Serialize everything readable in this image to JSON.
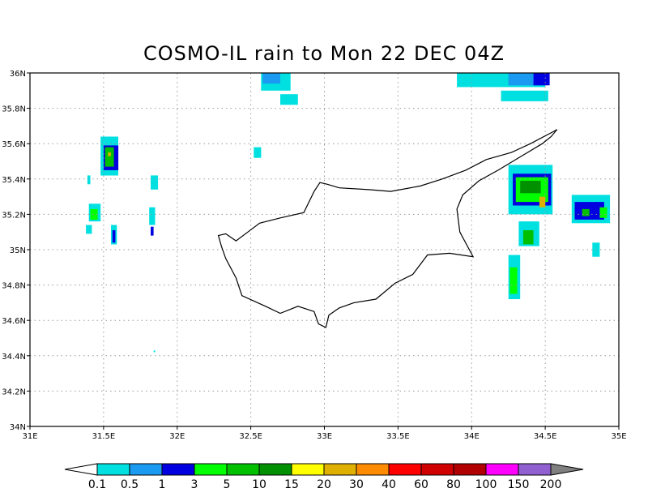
{
  "title": "COSMO-IL rain to Mon 22 DEC 04Z",
  "map": {
    "lon_range": [
      31,
      35
    ],
    "lat_range": [
      34,
      36
    ],
    "grid": "dotted",
    "x_ticks": [
      {
        "value": 31.0,
        "label": "31E"
      },
      {
        "value": 31.5,
        "label": "31.5E"
      },
      {
        "value": 32.0,
        "label": "32E"
      },
      {
        "value": 32.5,
        "label": "32.5E"
      },
      {
        "value": 33.0,
        "label": "33E"
      },
      {
        "value": 33.5,
        "label": "33.5E"
      },
      {
        "value": 34.0,
        "label": "34E"
      },
      {
        "value": 34.5,
        "label": "34.5E"
      },
      {
        "value": 35.0,
        "label": "35E"
      }
    ],
    "y_ticks": [
      {
        "value": 34.0,
        "label": "34N"
      },
      {
        "value": 34.2,
        "label": "34.2N"
      },
      {
        "value": 34.4,
        "label": "34.4N"
      },
      {
        "value": 34.6,
        "label": "34.6N"
      },
      {
        "value": 34.8,
        "label": "34.8N"
      },
      {
        "value": 35.0,
        "label": "35N"
      },
      {
        "value": 35.2,
        "label": "35.2N"
      },
      {
        "value": 35.4,
        "label": "35.4N"
      },
      {
        "value": 35.6,
        "label": "35.6N"
      },
      {
        "value": 35.8,
        "label": "35.8N"
      },
      {
        "value": 36.0,
        "label": "36N"
      }
    ],
    "coastline": [
      [
        32.28,
        35.08
      ],
      [
        32.33,
        35.09
      ],
      [
        32.4,
        35.05
      ],
      [
        32.48,
        35.1
      ],
      [
        32.56,
        35.15
      ],
      [
        32.7,
        35.18
      ],
      [
        32.86,
        35.21
      ],
      [
        32.93,
        35.33
      ],
      [
        32.97,
        35.38
      ],
      [
        33.02,
        35.37
      ],
      [
        33.1,
        35.35
      ],
      [
        33.3,
        35.34
      ],
      [
        33.45,
        35.33
      ],
      [
        33.65,
        35.36
      ],
      [
        33.8,
        35.4
      ],
      [
        33.96,
        35.45
      ],
      [
        34.1,
        35.51
      ],
      [
        34.27,
        35.55
      ],
      [
        34.4,
        35.6
      ],
      [
        34.56,
        35.67
      ],
      [
        34.58,
        35.68
      ],
      [
        34.54,
        35.64
      ],
      [
        34.48,
        35.6
      ],
      [
        34.38,
        35.55
      ],
      [
        34.28,
        35.5
      ],
      [
        34.18,
        35.45
      ],
      [
        34.05,
        35.39
      ],
      [
        33.94,
        35.31
      ],
      [
        33.9,
        35.23
      ],
      [
        33.92,
        35.1
      ],
      [
        34.01,
        34.96
      ],
      [
        33.85,
        34.98
      ],
      [
        33.7,
        34.97
      ],
      [
        33.6,
        34.86
      ],
      [
        33.48,
        34.81
      ],
      [
        33.35,
        34.72
      ],
      [
        33.2,
        34.7
      ],
      [
        33.1,
        34.67
      ],
      [
        33.03,
        34.63
      ],
      [
        33.01,
        34.56
      ],
      [
        32.96,
        34.58
      ],
      [
        32.93,
        34.65
      ],
      [
        32.82,
        34.68
      ],
      [
        32.7,
        34.64
      ],
      [
        32.6,
        34.68
      ],
      [
        32.44,
        34.74
      ],
      [
        32.4,
        34.84
      ],
      [
        32.33,
        34.95
      ],
      [
        32.3,
        35.02
      ],
      [
        32.28,
        35.08
      ]
    ],
    "rain_cells": [
      {
        "lon": 32.57,
        "lat": 35.9,
        "w": 0.2,
        "h": 0.1,
        "value": 0.1
      },
      {
        "lon": 32.7,
        "lat": 35.82,
        "w": 0.12,
        "h": 0.06,
        "value": 0.1
      },
      {
        "lon": 32.58,
        "lat": 35.94,
        "w": 0.12,
        "h": 0.07,
        "value": 0.5
      },
      {
        "lon": 32.52,
        "lat": 35.52,
        "w": 0.05,
        "h": 0.06,
        "value": 0.1
      },
      {
        "lon": 33.9,
        "lat": 35.92,
        "w": 0.6,
        "h": 0.08,
        "value": 0.1
      },
      {
        "lon": 34.2,
        "lat": 35.84,
        "w": 0.32,
        "h": 0.06,
        "value": 0.1
      },
      {
        "lon": 34.25,
        "lat": 35.93,
        "w": 0.18,
        "h": 0.07,
        "value": 0.5
      },
      {
        "lon": 34.42,
        "lat": 35.93,
        "w": 0.11,
        "h": 0.07,
        "value": 1
      },
      {
        "lon": 31.48,
        "lat": 35.42,
        "w": 0.12,
        "h": 0.22,
        "value": 0.1
      },
      {
        "lon": 31.5,
        "lat": 35.45,
        "w": 0.1,
        "h": 0.14,
        "value": 1
      },
      {
        "lon": 31.51,
        "lat": 35.47,
        "w": 0.06,
        "h": 0.11,
        "value": 5
      },
      {
        "lon": 31.53,
        "lat": 35.53,
        "w": 0.02,
        "h": 0.02,
        "value": 20
      },
      {
        "lon": 31.39,
        "lat": 35.37,
        "w": 0.02,
        "h": 0.05,
        "value": 0.1
      },
      {
        "lon": 31.4,
        "lat": 35.16,
        "w": 0.08,
        "h": 0.1,
        "value": 0.1
      },
      {
        "lon": 31.41,
        "lat": 35.17,
        "w": 0.05,
        "h": 0.06,
        "value": 3
      },
      {
        "lon": 31.38,
        "lat": 35.09,
        "w": 0.04,
        "h": 0.05,
        "value": 0.1
      },
      {
        "lon": 31.55,
        "lat": 35.03,
        "w": 0.04,
        "h": 0.11,
        "value": 0.1
      },
      {
        "lon": 31.56,
        "lat": 35.04,
        "w": 0.02,
        "h": 0.07,
        "value": 1
      },
      {
        "lon": 31.82,
        "lat": 35.34,
        "w": 0.05,
        "h": 0.08,
        "value": 0.1
      },
      {
        "lon": 31.81,
        "lat": 35.14,
        "w": 0.04,
        "h": 0.1,
        "value": 0.1
      },
      {
        "lon": 31.82,
        "lat": 35.08,
        "w": 0.02,
        "h": 0.05,
        "value": 1
      },
      {
        "lon": 31.84,
        "lat": 34.42,
        "w": 0.01,
        "h": 0.01,
        "value": 0.1
      },
      {
        "lon": 34.25,
        "lat": 35.2,
        "w": 0.3,
        "h": 0.28,
        "value": 0.1
      },
      {
        "lon": 34.28,
        "lat": 35.25,
        "w": 0.26,
        "h": 0.18,
        "value": 1
      },
      {
        "lon": 34.3,
        "lat": 35.27,
        "w": 0.22,
        "h": 0.14,
        "value": 3
      },
      {
        "lon": 34.33,
        "lat": 35.32,
        "w": 0.14,
        "h": 0.07,
        "value": 10
      },
      {
        "lon": 34.46,
        "lat": 35.24,
        "w": 0.04,
        "h": 0.06,
        "value": 20
      },
      {
        "lon": 34.32,
        "lat": 35.02,
        "w": 0.14,
        "h": 0.14,
        "value": 0.1
      },
      {
        "lon": 34.35,
        "lat": 35.03,
        "w": 0.07,
        "h": 0.08,
        "value": 5
      },
      {
        "lon": 34.25,
        "lat": 34.72,
        "w": 0.08,
        "h": 0.25,
        "value": 0.1
      },
      {
        "lon": 34.26,
        "lat": 34.75,
        "w": 0.05,
        "h": 0.15,
        "value": 3
      },
      {
        "lon": 34.68,
        "lat": 35.15,
        "w": 0.26,
        "h": 0.16,
        "value": 0.1
      },
      {
        "lon": 34.7,
        "lat": 35.17,
        "w": 0.2,
        "h": 0.1,
        "value": 1
      },
      {
        "lon": 34.75,
        "lat": 35.19,
        "w": 0.05,
        "h": 0.04,
        "value": 5
      },
      {
        "lon": 34.87,
        "lat": 35.18,
        "w": 0.05,
        "h": 0.06,
        "value": 3
      },
      {
        "lon": 34.82,
        "lat": 34.96,
        "w": 0.05,
        "h": 0.08,
        "value": 0.1
      }
    ]
  },
  "colorbar": {
    "levels": [
      "0.1",
      "0.5",
      "1",
      "3",
      "5",
      "10",
      "15",
      "20",
      "30",
      "40",
      "60",
      "80",
      "100",
      "150",
      "200"
    ],
    "colors": [
      "#00e0e0",
      "#1a9af0",
      "#0000e0",
      "#00ff00",
      "#00c000",
      "#009000",
      "#ffff00",
      "#e0b000",
      "#ff8c00",
      "#ff0000",
      "#d00000",
      "#b00000",
      "#ff00ff",
      "#9060d0"
    ],
    "under_color": "#ffffff",
    "over_color": "#808080"
  }
}
